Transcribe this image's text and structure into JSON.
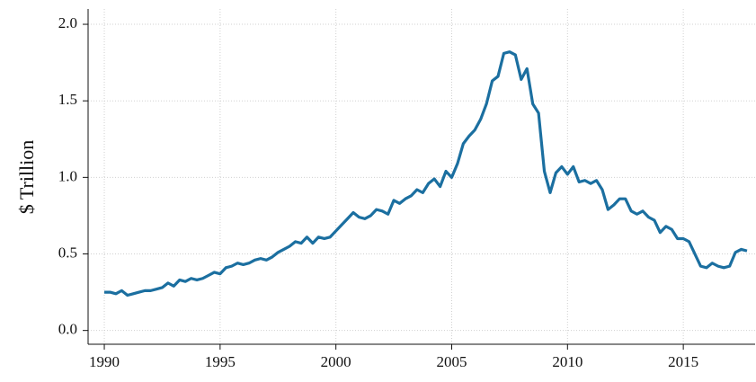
{
  "chart_data": {
    "type": "line",
    "y_label": "$ Trillion",
    "x": [
      1990,
      1990.25,
      1990.5,
      1990.75,
      1991,
      1991.25,
      1991.5,
      1991.75,
      1992,
      1992.25,
      1992.5,
      1992.75,
      1993,
      1993.25,
      1993.5,
      1993.75,
      1994,
      1994.25,
      1994.5,
      1994.75,
      1995,
      1995.25,
      1995.5,
      1995.75,
      1996,
      1996.25,
      1996.5,
      1996.75,
      1997,
      1997.25,
      1997.5,
      1997.75,
      1998,
      1998.25,
      1998.5,
      1998.75,
      1999,
      1999.25,
      1999.5,
      1999.75,
      2000,
      2000.25,
      2000.5,
      2000.75,
      2001,
      2001.25,
      2001.5,
      2001.75,
      2002,
      2002.25,
      2002.5,
      2002.75,
      2003,
      2003.25,
      2003.5,
      2003.75,
      2004,
      2004.25,
      2004.5,
      2004.75,
      2005,
      2005.25,
      2005.5,
      2005.75,
      2006,
      2006.25,
      2006.5,
      2006.75,
      2007,
      2007.25,
      2007.5,
      2007.75,
      2008,
      2008.25,
      2008.5,
      2008.75,
      2009,
      2009.25,
      2009.5,
      2009.75,
      2010,
      2010.25,
      2010.5,
      2010.75,
      2011,
      2011.25,
      2011.5,
      2011.75,
      2012,
      2012.25,
      2012.5,
      2012.75,
      2013,
      2013.25,
      2013.5,
      2013.75,
      2014,
      2014.25,
      2014.5,
      2014.75,
      2015,
      2015.25,
      2015.5,
      2015.75,
      2016,
      2016.25,
      2016.5,
      2016.75,
      2017,
      2017.25,
      2017.5,
      2017.75
    ],
    "series": [
      {
        "color": "#1b6fa0",
        "values": [
          0.25,
          0.25,
          0.24,
          0.26,
          0.23,
          0.24,
          0.25,
          0.26,
          0.26,
          0.27,
          0.28,
          0.31,
          0.29,
          0.33,
          0.32,
          0.34,
          0.33,
          0.34,
          0.36,
          0.38,
          0.37,
          0.41,
          0.42,
          0.44,
          0.43,
          0.44,
          0.46,
          0.47,
          0.46,
          0.48,
          0.51,
          0.53,
          0.55,
          0.58,
          0.57,
          0.61,
          0.57,
          0.61,
          0.6,
          0.61,
          0.65,
          0.69,
          0.73,
          0.77,
          0.74,
          0.73,
          0.75,
          0.79,
          0.78,
          0.76,
          0.85,
          0.83,
          0.86,
          0.88,
          0.92,
          0.9,
          0.96,
          0.99,
          0.94,
          1.04,
          1.0,
          1.09,
          1.22,
          1.27,
          1.31,
          1.38,
          1.48,
          1.63,
          1.66,
          1.81,
          1.82,
          1.8,
          1.64,
          1.71,
          1.48,
          1.42,
          1.04,
          0.9,
          1.03,
          1.07,
          1.02,
          1.07,
          0.97,
          0.98,
          0.96,
          0.98,
          0.92,
          0.79,
          0.82,
          0.86,
          0.86,
          0.78,
          0.76,
          0.78,
          0.74,
          0.72,
          0.64,
          0.68,
          0.66,
          0.6,
          0.6,
          0.58,
          0.5,
          0.42,
          0.41,
          0.44,
          0.42,
          0.41,
          0.42,
          0.51,
          0.53,
          0.52
        ]
      }
    ],
    "xlim": [
      1989.3,
      2018.1
    ],
    "ylim": [
      -0.09,
      2.1
    ],
    "xticks": [
      1990,
      1995,
      2000,
      2005,
      2010,
      2015
    ],
    "yticks": [
      {
        "value": 0,
        "label": "0.0"
      },
      {
        "value": 0.5,
        "label": "0.5"
      },
      {
        "value": 1,
        "label": "1.0"
      },
      {
        "value": 1.5,
        "label": "1.5"
      },
      {
        "value": 2,
        "label": "2.0"
      }
    ],
    "grid": true
  }
}
